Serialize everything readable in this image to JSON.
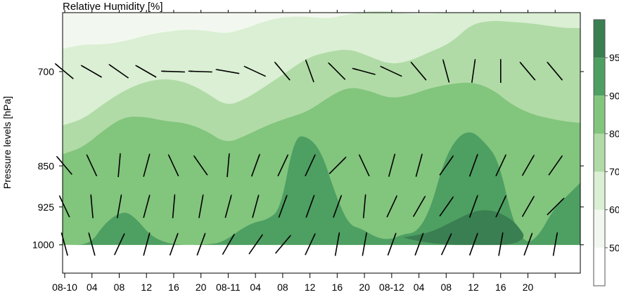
{
  "chart_data": {
    "type": "contour",
    "title": "Relative Humidity [%]",
    "ylabel": "Pressure levels [hPa]",
    "xlabel": "",
    "y_axis": {
      "scale": "log",
      "inverted": true,
      "ticks": [
        700,
        850,
        925,
        1000
      ],
      "tick_labels": [
        "700",
        "850",
        "925",
        "1000"
      ],
      "range": [
        620,
        1060
      ]
    },
    "x_axis": {
      "unit": "hours",
      "range": [
        0,
        76
      ],
      "ticks": [
        0,
        4,
        8,
        12,
        16,
        20,
        24,
        28,
        32,
        36,
        40,
        44,
        48,
        52,
        56,
        60,
        64,
        68,
        72
      ],
      "tick_labels": [
        "08-10",
        "04",
        "08",
        "12",
        "16",
        "20",
        "08-11",
        "04",
        "08",
        "12",
        "16",
        "20",
        "08-12",
        "04",
        "08",
        "12",
        "16",
        "20",
        ""
      ]
    },
    "colorbar": {
      "levels": [
        50,
        60,
        70,
        80,
        90,
        95
      ],
      "tick_labels": [
        "50",
        "60",
        "70",
        "80",
        "90",
        "95"
      ],
      "colors": [
        "#ffffff",
        "#f2f8ef",
        "#daefd3",
        "#b0dba6",
        "#82c57d",
        "#4e9f62",
        "#3a7f52"
      ],
      "position": "right"
    },
    "series": [
      {
        "level": 60,
        "x": [
          0,
          3,
          6,
          9,
          12,
          15,
          18,
          21,
          24,
          27,
          30,
          33,
          36,
          39,
          42,
          45,
          48,
          51,
          54,
          56,
          76
        ],
        "top": [
          668,
          662,
          662,
          658,
          650,
          645,
          642,
          643,
          648,
          640,
          630,
          625,
          625,
          628,
          622,
          618,
          618,
          622,
          622,
          620,
          620
        ]
      },
      {
        "level": 70,
        "x": [
          0,
          3,
          6,
          9,
          12,
          15,
          18,
          21,
          24,
          27,
          30,
          33,
          36,
          39,
          42,
          45,
          48,
          51,
          54,
          57,
          60,
          63,
          66,
          69,
          72,
          74,
          76
        ],
        "top": [
          782,
          772,
          748,
          728,
          715,
          710,
          715,
          730,
          752,
          740,
          720,
          700,
          680,
          672,
          668,
          678,
          690,
          685,
          672,
          660,
          635,
          630,
          632,
          634,
          638,
          640,
          640
        ]
      },
      {
        "level": 80,
        "x": [
          0,
          3,
          6,
          9,
          12,
          15,
          18,
          21,
          24,
          27,
          30,
          33,
          36,
          39,
          42,
          45,
          48,
          51,
          54,
          57,
          60,
          63,
          66,
          69,
          72,
          74,
          76
        ],
        "top": [
          830,
          818,
          790,
          768,
          768,
          775,
          778,
          790,
          812,
          798,
          782,
          770,
          760,
          738,
          722,
          728,
          740,
          735,
          724,
          718,
          715,
          725,
          750,
          765,
          772,
          776,
          778
        ]
      },
      {
        "level": 90,
        "x": [
          0,
          4,
          6,
          8,
          10,
          14,
          22,
          24,
          26,
          28,
          30,
          32,
          34,
          36,
          38,
          40,
          42,
          44,
          46,
          48,
          50,
          52,
          54,
          56,
          58,
          60,
          62,
          64,
          66,
          68,
          70,
          72,
          74,
          76
        ],
        "top": [
          1000,
          1000,
          960,
          938,
          934,
          1000,
          1000,
          990,
          970,
          955,
          950,
          930,
          800,
          800,
          825,
          900,
          960,
          968,
          985,
          990,
          978,
          975,
          930,
          840,
          800,
          790,
          810,
          840,
          950,
          1000,
          980,
          930,
          905,
          880
        ]
      },
      {
        "level": 95,
        "x": [
          50,
          54,
          57,
          60,
          62,
          64,
          66,
          67,
          68,
          66,
          62,
          56,
          52,
          50
        ],
        "top": [
          985,
          975,
          955,
          935,
          930,
          935,
          950,
          965,
          985,
          1000,
          1000,
          1000,
          992,
          985
        ]
      }
    ],
    "wind_barbs": {
      "note": "staff direction and barb counts per level; angle in degrees (0 = pointing up)",
      "levels": [
        700,
        850,
        925,
        1000
      ],
      "x": [
        0,
        4,
        8,
        12,
        16,
        20,
        24,
        28,
        32,
        36,
        40,
        44,
        48,
        52,
        56,
        60,
        64,
        68,
        72
      ],
      "angles": {
        "700": [
          -50,
          -60,
          -55,
          -60,
          -88,
          -88,
          -80,
          -65,
          -40,
          -20,
          -45,
          -75,
          -65,
          -40,
          -15,
          8,
          0,
          -40,
          -40
        ],
        "850": [
          -40,
          -25,
          5,
          15,
          -25,
          -35,
          5,
          20,
          25,
          25,
          45,
          -25,
          15,
          15,
          35,
          20,
          25,
          30,
          35
        ],
        "925": [
          -25,
          -5,
          10,
          15,
          5,
          10,
          15,
          15,
          20,
          20,
          20,
          5,
          25,
          30,
          35,
          20,
          25,
          30,
          45
        ],
        "1000": [
          -15,
          -15,
          25,
          15,
          20,
          20,
          30,
          35,
          40,
          25,
          10,
          10,
          20,
          20,
          25,
          20,
          10,
          20,
          10
        ]
      }
    }
  }
}
